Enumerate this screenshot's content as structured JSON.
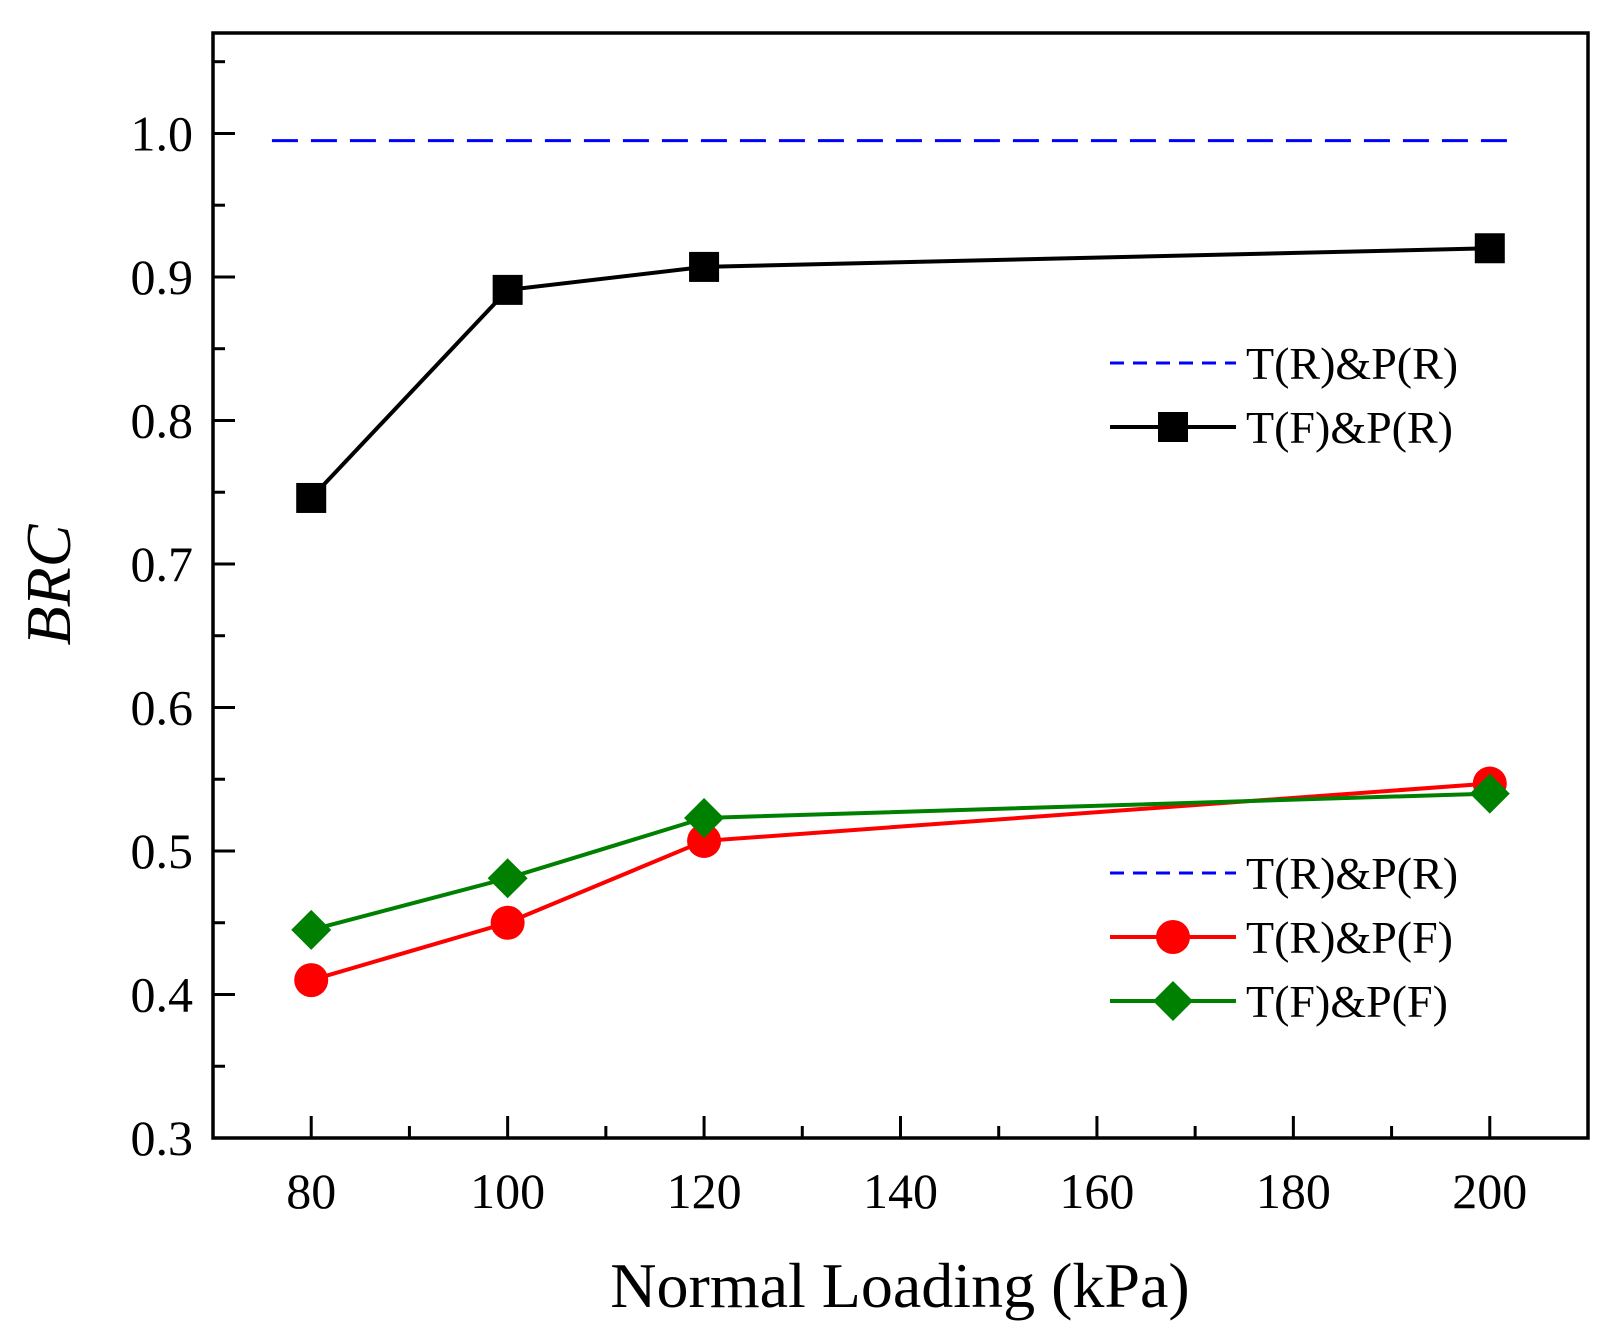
{
  "chart_data": {
    "type": "line",
    "title": "",
    "xlabel": "Normal Loading (kPa)",
    "ylabel": "BRC",
    "xlim": [
      70,
      210
    ],
    "ylim": [
      0.3,
      1.07
    ],
    "xticks": [
      80,
      100,
      120,
      140,
      160,
      180,
      200
    ],
    "xtick_labels": [
      "80",
      "100",
      "120",
      "140",
      "160",
      "180",
      "200"
    ],
    "yticks": [
      0.3,
      0.4,
      0.5,
      0.6,
      0.7,
      0.8,
      0.9,
      1.0
    ],
    "ytick_labels": [
      "0.3",
      "0.4",
      "0.5",
      "0.6",
      "0.7",
      "0.8",
      "0.9",
      "1.0"
    ],
    "grid": false,
    "series": [
      {
        "name": "T(R)&P(R)",
        "type": "reference-line",
        "color": "#0000ff",
        "line": "dashed",
        "marker": "none",
        "x": [
          76,
          202
        ],
        "values": [
          0.995,
          0.995
        ]
      },
      {
        "name": "T(F)&P(R)",
        "color": "#000000",
        "line": "solid",
        "marker": "square",
        "x": [
          80,
          100,
          120,
          200
        ],
        "values": [
          0.746,
          0.891,
          0.907,
          0.92
        ]
      },
      {
        "name": "T(R)&P(F)",
        "color": "#ff0000",
        "line": "solid",
        "marker": "circle",
        "x": [
          80,
          100,
          120,
          200
        ],
        "values": [
          0.41,
          0.45,
          0.507,
          0.547
        ]
      },
      {
        "name": "T(F)&P(F)",
        "color": "#008000",
        "line": "solid",
        "marker": "diamond",
        "x": [
          80,
          100,
          120,
          200
        ],
        "values": [
          0.445,
          0.481,
          0.523,
          0.54
        ]
      }
    ],
    "legends": [
      {
        "position": "upper-right",
        "entries": [
          {
            "label": "T(R)&P(R)",
            "series": 0
          },
          {
            "label": "T(F)&P(R)",
            "series": 1
          }
        ]
      },
      {
        "position": "lower-right",
        "entries": [
          {
            "label": "T(R)&P(R)",
            "series": 0
          },
          {
            "label": "T(R)&P(F)",
            "series": 2
          },
          {
            "label": "T(F)&P(F)",
            "series": 3
          }
        ]
      }
    ]
  }
}
